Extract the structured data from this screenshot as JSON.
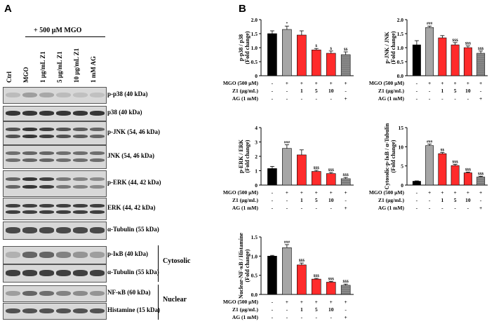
{
  "panel_a_label": "A",
  "panel_b_label": "B",
  "treatment_header": "+ 500 µM MGO",
  "lanes": [
    "Ctrl",
    "MGO",
    "1 µg/mL Z1",
    "5 µg/mL Z1",
    "10 µg/mL Z1",
    "1 mM AG"
  ],
  "blots": [
    {
      "label": "p-p38 (40 kDa)",
      "intensity": [
        0.15,
        0.3,
        0.25,
        0.15,
        0.12,
        0.12
      ]
    },
    {
      "label": "p38 (40 kDa)",
      "intensity": [
        0.85,
        0.85,
        0.85,
        0.85,
        0.85,
        0.85
      ]
    },
    {
      "label": "p-JNK (54, 46 kDa)",
      "intensity": [
        0.7,
        0.85,
        0.8,
        0.7,
        0.65,
        0.6
      ]
    },
    {
      "label": "JNK (54, 46 kDa)",
      "intensity": [
        0.55,
        0.6,
        0.6,
        0.55,
        0.55,
        0.55
      ]
    },
    {
      "label": "p-ERK (44, 42 kDa)",
      "intensity": [
        0.6,
        0.85,
        0.8,
        0.5,
        0.45,
        0.4
      ]
    },
    {
      "label": "ERK (44, 42 kDa)",
      "intensity": [
        0.8,
        0.8,
        0.8,
        0.8,
        0.8,
        0.8
      ]
    },
    {
      "label": "α-Tubulin (55 kDa)",
      "intensity": [
        0.75,
        0.75,
        0.75,
        0.75,
        0.75,
        0.75
      ]
    },
    {
      "label": "p-IκB  (40 kDa)",
      "intensity": [
        0.2,
        0.6,
        0.6,
        0.45,
        0.35,
        0.3
      ]
    },
    {
      "label": "α-Tubulin (55 kDa)",
      "intensity": [
        0.8,
        0.8,
        0.8,
        0.8,
        0.8,
        0.8
      ]
    },
    {
      "label": "NF-κB (60 kDa)",
      "intensity": [
        0.3,
        0.6,
        0.55,
        0.45,
        0.4,
        0.35
      ]
    },
    {
      "label": "Histamine (15 kDa)",
      "intensity": [
        0.7,
        0.7,
        0.7,
        0.7,
        0.7,
        0.7
      ]
    }
  ],
  "group_labels": {
    "cytosolic": "Cytosolic",
    "nuclear": "Nuclear"
  },
  "row_labels": {
    "mgo": "MGO (500 µM)",
    "z1": "Z1 (µg/mL)",
    "ag": "AG (1 mM)",
    "mgo_signs": [
      "-",
      "+",
      "+",
      "+",
      "+",
      "+"
    ],
    "z1_values": [
      "-",
      "-",
      "1",
      "5",
      "10",
      "-"
    ],
    "ag_signs": [
      "-",
      "-",
      "-",
      "-",
      "-",
      "+"
    ]
  },
  "chart_data": [
    {
      "type": "bar",
      "ylabel": "p-p38 / p38\n(Fold change)",
      "ylim": [
        0,
        2.0
      ],
      "yticks": [
        "0",
        "0.5",
        "1.0",
        "1.5",
        "2.0"
      ],
      "categories": [
        "Ctrl",
        "MGO",
        "Z1 1",
        "Z1 5",
        "Z1 10",
        "AG"
      ],
      "values": [
        1.5,
        1.65,
        1.45,
        0.92,
        0.8,
        0.75
      ],
      "errors": [
        0.1,
        0.12,
        0.15,
        0.05,
        0.08,
        0.1
      ],
      "annotations": [
        "",
        "*",
        "",
        "$",
        "$",
        "$$"
      ]
    },
    {
      "type": "bar",
      "ylabel": "p-JNK / JNK\n(Fold change)",
      "ylim": [
        0,
        2.0
      ],
      "yticks": [
        "0.0",
        "0.5",
        "1.0",
        "1.5",
        "2.0"
      ],
      "categories": [
        "Ctrl",
        "MGO",
        "Z1 1",
        "Z1 5",
        "Z1 10",
        "AG"
      ],
      "values": [
        1.1,
        1.72,
        1.35,
        1.1,
        1.0,
        0.8
      ],
      "errors": [
        0.15,
        0.05,
        0.08,
        0.08,
        0.06,
        0.08
      ],
      "annotations": [
        "",
        "###",
        "",
        "$$$",
        "$$$",
        "$$$"
      ]
    },
    {
      "type": "bar",
      "ylabel": "p-ERK / ERK\n(Fold change)",
      "ylim": [
        0,
        4
      ],
      "yticks": [
        "0",
        "1",
        "2",
        "3",
        "4"
      ],
      "categories": [
        "Ctrl",
        "MGO",
        "Z1 1",
        "Z1 5",
        "Z1 10",
        "AG"
      ],
      "values": [
        1.15,
        2.55,
        2.1,
        0.95,
        0.8,
        0.45
      ],
      "errors": [
        0.15,
        0.25,
        0.35,
        0.08,
        0.08,
        0.08
      ],
      "annotations": [
        "",
        "###",
        "",
        "$$$",
        "$$$",
        "$$$"
      ]
    },
    {
      "type": "bar",
      "ylabel": "Cytosolic-p-IκB / α-Tubulin\n(Fold change)",
      "ylim": [
        0,
        15
      ],
      "yticks": [
        "0",
        "5",
        "10",
        "15"
      ],
      "categories": [
        "Ctrl",
        "MGO",
        "Z1 1",
        "Z1 5",
        "Z1 10",
        "AG"
      ],
      "values": [
        1.0,
        10.3,
        8.2,
        5.1,
        3.2,
        2.1
      ],
      "errors": [
        0.1,
        0.4,
        0.3,
        0.3,
        0.2,
        0.2
      ],
      "annotations": [
        "",
        "###",
        "$$",
        "$$$",
        "$$$",
        "$$$"
      ]
    },
    {
      "type": "bar",
      "ylabel": "Nuclear-NF-κB / Histamine\n(Fold change)",
      "ylim": [
        0,
        1.5
      ],
      "yticks": [
        "0.0",
        "0.5",
        "1.0",
        "1.5"
      ],
      "categories": [
        "Ctrl",
        "MGO",
        "Z1 1",
        "Z1 5",
        "Z1 10",
        "AG"
      ],
      "values": [
        1.0,
        1.22,
        0.77,
        0.4,
        0.32,
        0.24
      ],
      "errors": [
        0.02,
        0.08,
        0.05,
        0.02,
        0.02,
        0.03
      ],
      "annotations": [
        "",
        "###",
        "$$$",
        "$$$",
        "$$$",
        "$$$"
      ]
    }
  ],
  "colors": {
    "ctrl": "#000000",
    "mgo": "#a6a6a6",
    "z1": "#ff2b2b",
    "ag": "#8c8c8c"
  }
}
